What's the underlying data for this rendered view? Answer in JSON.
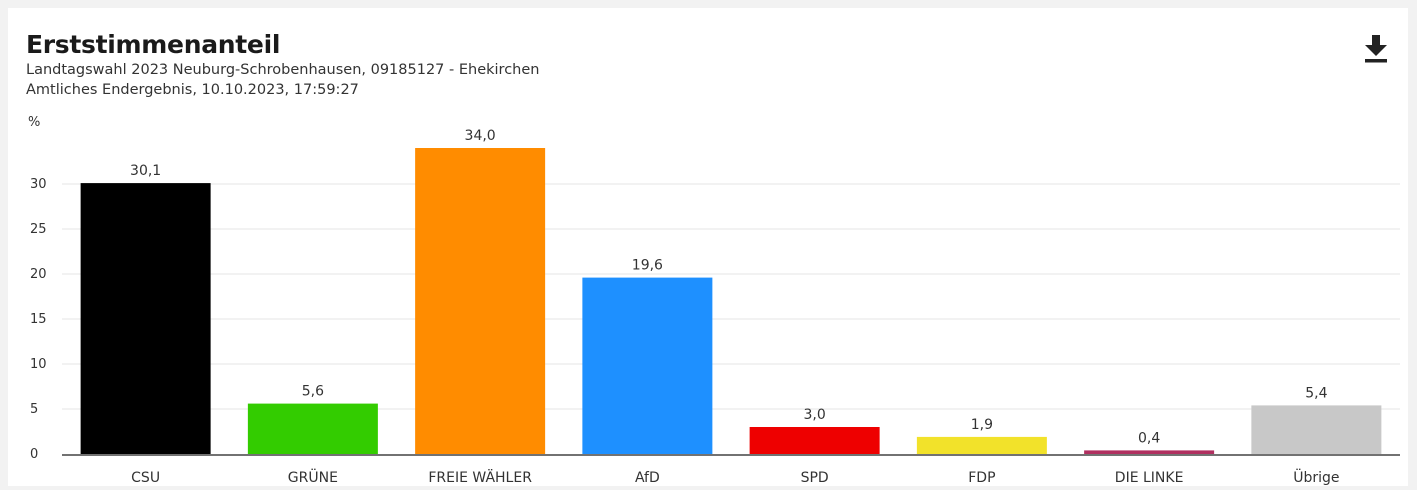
{
  "header": {
    "title": "Erststimmenanteil",
    "subtitle_line1": "Landtagswahl 2023 Neuburg-Schrobenhausen, 09185127 - Ehekirchen",
    "subtitle_line2": "Amtliches Endergebnis, 10.10.2023, 17:59:27",
    "download_icon": "download-icon"
  },
  "chart_data": {
    "type": "bar",
    "title": "Erststimmenanteil",
    "ylabel": "%",
    "xlabel": "",
    "ylim": [
      0,
      35
    ],
    "yticks": [
      0,
      5,
      10,
      15,
      20,
      25,
      30
    ],
    "grid": true,
    "categories": [
      "CSU",
      "GRÜNE",
      "FREIE WÄHLER",
      "AfD",
      "SPD",
      "FDP",
      "DIE LINKE",
      "Übrige"
    ],
    "values": [
      30.1,
      5.6,
      34.0,
      19.6,
      3.0,
      1.9,
      0.4,
      5.4
    ],
    "value_labels": [
      "30,1",
      "5,6",
      "34,0",
      "19,6",
      "3,0",
      "1,9",
      "0,4",
      "5,4"
    ],
    "colors": [
      "#000000",
      "#33cc00",
      "#ff8c00",
      "#1e90ff",
      "#ee0000",
      "#f2e22a",
      "#b03060",
      "#c8c8c8"
    ]
  }
}
